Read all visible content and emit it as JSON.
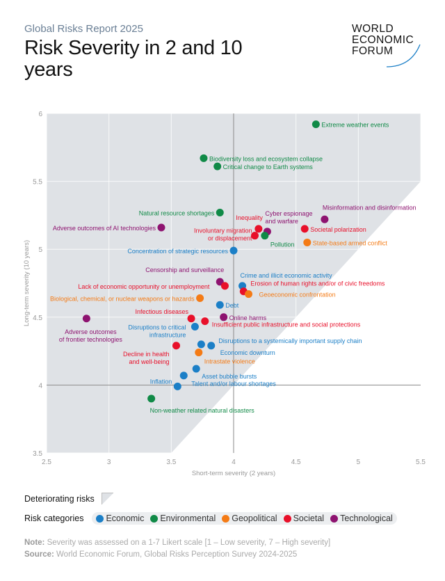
{
  "header": {
    "kicker": "Global Risks Report 2025",
    "title": "Risk Severity in 2 and 10 years",
    "logo": [
      "WORLD",
      "ECONOMIC",
      "FORUM"
    ]
  },
  "legend": {
    "deteriorating_label": "Deteriorating risks",
    "categories_label": "Risk categories",
    "categories": [
      {
        "name": "Economic",
        "color": "#1b7fc7"
      },
      {
        "name": "Environmental",
        "color": "#108a47"
      },
      {
        "name": "Geopolitical",
        "color": "#f47b16"
      },
      {
        "name": "Societal",
        "color": "#e8102a"
      },
      {
        "name": "Technological",
        "color": "#8e1370"
      }
    ]
  },
  "footer": {
    "note_label": "Note:",
    "note": "Severity was assessed on a 1-7 Likert scale [1 – Low severity, 7 – High severity]",
    "source_label": "Source:",
    "source": "World Economic Forum, Global Risks Perception Survey 2024-2025"
  },
  "chart_data": {
    "type": "scatter",
    "xlabel": "Short-term severity (2 years)",
    "ylabel": "Long-term severity (10 years)",
    "xlim": [
      2.5,
      5.5
    ],
    "ylim": [
      3.5,
      6
    ],
    "xticks": [
      "2.5",
      "3",
      "3.5",
      "4",
      "4.5",
      "5",
      "5.5"
    ],
    "yticks": [
      "3.5",
      "4",
      "4.5",
      "5",
      "5.5",
      "6"
    ],
    "grid": true,
    "reference_lines": {
      "x": 4,
      "y": 4
    },
    "shaded_region": "above y = x (deteriorating risks)",
    "points": [
      {
        "label": "Extreme weather events",
        "category": "Environmental",
        "x": 4.66,
        "y": 5.92
      },
      {
        "label": "Biodiversity loss and ecosystem collapse",
        "category": "Environmental",
        "x": 3.76,
        "y": 5.67
      },
      {
        "label": "Critical change to Earth systems",
        "category": "Environmental",
        "x": 3.87,
        "y": 5.61
      },
      {
        "label": "Natural resource shortages",
        "category": "Environmental",
        "x": 3.89,
        "y": 5.27
      },
      {
        "label": "Adverse outcomes of AI technologies",
        "category": "Technological",
        "x": 3.42,
        "y": 5.16
      },
      {
        "label": "Inequality",
        "category": "Societal",
        "x": 4.2,
        "y": 5.15
      },
      {
        "label": "Cyber espionage and warfare",
        "category": "Technological",
        "x": 4.27,
        "y": 5.13
      },
      {
        "label": "Involuntary migration or displacement",
        "category": "Societal",
        "x": 4.17,
        "y": 5.1
      },
      {
        "label": "Pollution",
        "category": "Environmental",
        "x": 4.25,
        "y": 5.1
      },
      {
        "label": "Misinformation and disinformation",
        "category": "Technological",
        "x": 4.73,
        "y": 5.22
      },
      {
        "label": "Societal polarization",
        "category": "Societal",
        "x": 4.57,
        "y": 5.15
      },
      {
        "label": "State-based armed conflict",
        "category": "Geopolitical",
        "x": 4.59,
        "y": 5.05
      },
      {
        "label": "Concentration of strategic resources",
        "category": "Economic",
        "x": 4.0,
        "y": 4.99
      },
      {
        "label": "Censorship and surveillance",
        "category": "Technological",
        "x": 3.89,
        "y": 4.76
      },
      {
        "label": "Lack of economic opportunity or unemployment",
        "category": "Societal",
        "x": 3.93,
        "y": 4.73
      },
      {
        "label": "Crime and illicit economic activity",
        "category": "Economic",
        "x": 4.07,
        "y": 4.73
      },
      {
        "label": "Erosion of human rights and/or of civic freedoms",
        "category": "Societal",
        "x": 4.08,
        "y": 4.69
      },
      {
        "label": "Geoeconomic confrontation",
        "category": "Geopolitical",
        "x": 4.12,
        "y": 4.67
      },
      {
        "label": "Biological, chemical, or nuclear weapons or hazards",
        "category": "Geopolitical",
        "x": 3.73,
        "y": 4.64
      },
      {
        "label": "Debt",
        "category": "Economic",
        "x": 3.89,
        "y": 4.59
      },
      {
        "label": "Infectious diseases",
        "category": "Societal",
        "x": 3.66,
        "y": 4.49
      },
      {
        "label": "Online harms",
        "category": "Technological",
        "x": 3.92,
        "y": 4.5
      },
      {
        "label": "Insufficient public infrastructure and social protections",
        "category": "Societal",
        "x": 3.77,
        "y": 4.47
      },
      {
        "label": "Disruptions to critical infrastructure",
        "category": "Economic",
        "x": 3.69,
        "y": 4.43
      },
      {
        "label": "Adverse outcomes of frontier technologies",
        "category": "Technological",
        "x": 2.82,
        "y": 4.49
      },
      {
        "label": "Disruptions to a systemically important supply chain",
        "category": "Economic",
        "x": 3.74,
        "y": 4.3
      },
      {
        "label": "Economic downturn",
        "category": "Economic",
        "x": 3.82,
        "y": 4.29
      },
      {
        "label": "Decline in health and well-being",
        "category": "Societal",
        "x": 3.54,
        "y": 4.29
      },
      {
        "label": "Intrastate violence",
        "category": "Geopolitical",
        "x": 3.72,
        "y": 4.24
      },
      {
        "label": "Asset bubble bursts",
        "category": "Economic",
        "x": 3.7,
        "y": 4.12
      },
      {
        "label": "Talent and/or labour shortages",
        "category": "Economic",
        "x": 3.6,
        "y": 4.07
      },
      {
        "label": "Inflation",
        "category": "Economic",
        "x": 3.55,
        "y": 3.99
      },
      {
        "label": "Non-weather related natural disasters",
        "category": "Environmental",
        "x": 3.34,
        "y": 3.9
      }
    ]
  }
}
